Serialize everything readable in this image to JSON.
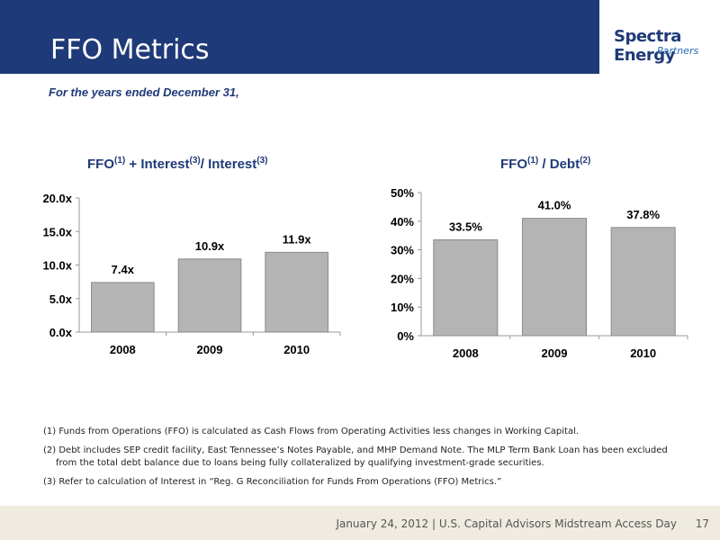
{
  "header": {
    "title": "FFO Metrics"
  },
  "logo": {
    "main": "Spectra Energy",
    "sub": "Partners"
  },
  "subtitle": "For the years ended December 31,",
  "chart_data": [
    {
      "type": "bar",
      "title_parts": [
        "FFO",
        "(1)",
        " + Interest",
        "(3)",
        "/ Interest",
        "(3)"
      ],
      "categories": [
        "2008",
        "2009",
        "2010"
      ],
      "values": [
        7.4,
        10.9,
        11.9
      ],
      "data_labels": [
        "7.4x",
        "10.9x",
        "11.9x"
      ],
      "ylim": [
        0,
        20
      ],
      "yticks": [
        0,
        5,
        10,
        15,
        20
      ],
      "ytick_labels": [
        "0.0x",
        "5.0x",
        "10.0x",
        "15.0x",
        "20.0x"
      ],
      "grid": false
    },
    {
      "type": "bar",
      "title_parts": [
        "FFO",
        "(1)",
        " / Debt",
        "(2)"
      ],
      "categories": [
        "2008",
        "2009",
        "2010"
      ],
      "values": [
        33.5,
        41.0,
        37.8
      ],
      "data_labels": [
        "33.5%",
        "41.0%",
        "37.8%"
      ],
      "ylim": [
        0,
        50
      ],
      "yticks": [
        0,
        10,
        20,
        30,
        40,
        50
      ],
      "ytick_labels": [
        "0%",
        "10%",
        "20%",
        "30%",
        "40%",
        "50%"
      ],
      "grid": false
    }
  ],
  "footnotes": [
    "(1) Funds from Operations (FFO) is calculated as Cash Flows from Operating Activities less changes in Working Capital.",
    "(2) Debt includes SEP credit facility, East Tennessee’s Notes Payable, and MHP Demand Note. The MLP Term Bank Loan has been excluded from the total debt balance due to loans being fully collateralized by qualifying investment-grade securities.",
    "(3) Refer to calculation of Interest in “Reg. G Reconciliation for Funds From Operations (FFO) Metrics.”"
  ],
  "footer": {
    "text": "January 24, 2012 | U.S. Capital Advisors Midstream Access Day",
    "page": "17"
  },
  "colors": {
    "header_bg": "#1f3a78",
    "bar_fill": "#b4b4b4",
    "title": "#1f3a78",
    "footer_bg": "#f0ebe0"
  }
}
